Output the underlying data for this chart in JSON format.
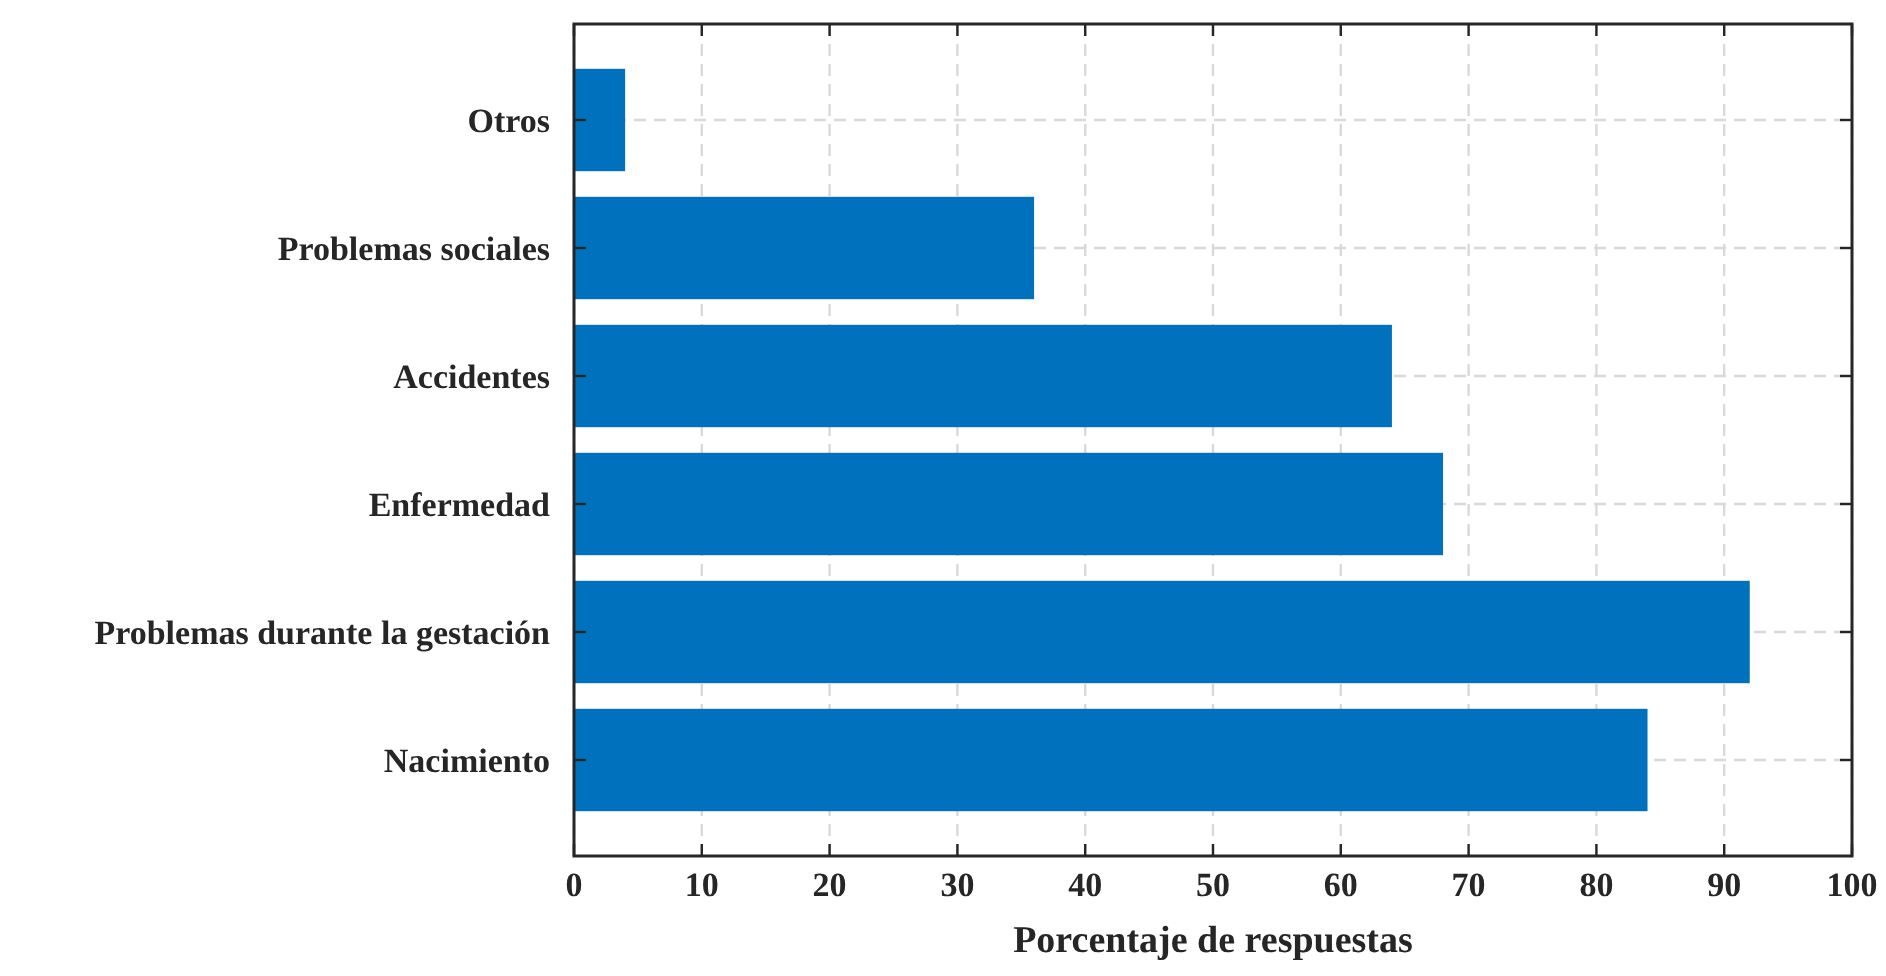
{
  "chart_data": {
    "type": "bar",
    "orientation": "horizontal",
    "xlabel": "Porcentaje de respuestas",
    "categories": [
      "Otros",
      "Problemas sociales",
      "Accidentes",
      "Enfermedad",
      "Problemas durante la gestación",
      "Nacimiento"
    ],
    "values": [
      4,
      36,
      64,
      68,
      92,
      84
    ],
    "color": "#0072bd",
    "xlim": [
      0,
      100
    ],
    "xticks": [
      0,
      10,
      20,
      30,
      40,
      50,
      60,
      70,
      80,
      90,
      100
    ],
    "grid": true
  }
}
